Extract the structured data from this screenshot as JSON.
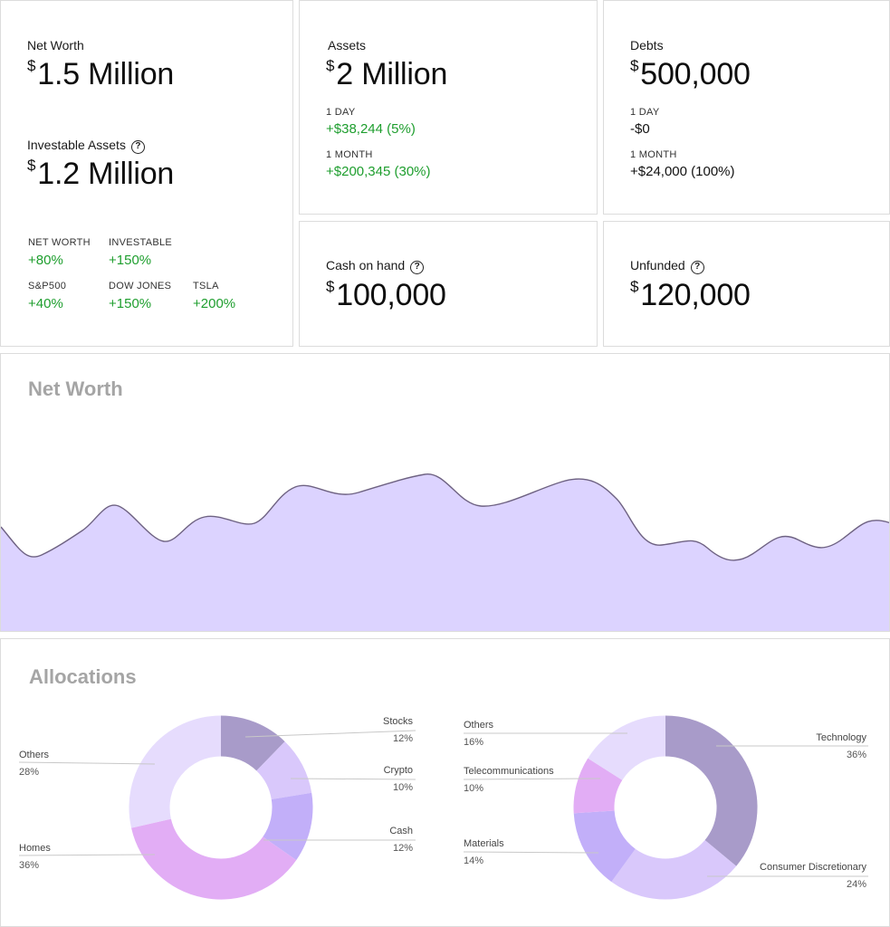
{
  "summary": {
    "net_worth": {
      "label": "Net Worth",
      "currency": "$",
      "value": "1.5 Million"
    },
    "investable": {
      "label": "Investable Assets",
      "help_icon": "question-circle-icon",
      "currency": "$",
      "value": "1.2 Million"
    },
    "benchmarks": [
      {
        "label": "NET WORTH",
        "value": "+80%"
      },
      {
        "label": "INVESTABLE",
        "value": "+150%"
      },
      {
        "label": "S&P500",
        "value": "+40%"
      },
      {
        "label": "DOW JONES",
        "value": "+150%"
      },
      {
        "label": "TSLA",
        "value": "+200%"
      }
    ]
  },
  "assets": {
    "label": "Assets",
    "currency": "$",
    "value": "2 Million",
    "day_label": "1 DAY",
    "day_change": "+$38,244 (5%)",
    "month_label": "1 MONTH",
    "month_change": "+$200,345 (30%)"
  },
  "debts": {
    "label": "Debts",
    "currency": "$",
    "value": "500,000",
    "day_label": "1 DAY",
    "day_change": "-$0",
    "month_label": "1 MONTH",
    "month_change": "+$24,000 (100%)"
  },
  "cash": {
    "label": "Cash on hand",
    "help_icon": "question-circle-icon",
    "currency": "$",
    "value": "100,000"
  },
  "unfunded": {
    "label": "Unfunded",
    "help_icon": "question-circle-icon",
    "currency": "$",
    "value": "120,000"
  },
  "net_worth_chart": {
    "title": "Net Worth",
    "fill_color": "#dcd3ff",
    "line_color": "#6e6282"
  },
  "allocations": {
    "title": "Allocations",
    "charts": [
      {
        "slices": [
          {
            "name": "Stocks",
            "percent": 12,
            "label": "12%",
            "color": "#a89bc9"
          },
          {
            "name": "Crypto",
            "percent": 10,
            "label": "10%",
            "color": "#d9c8fb"
          },
          {
            "name": "Cash",
            "percent": 12,
            "label": "12%",
            "color": "#c2aff9"
          },
          {
            "name": "Homes",
            "percent": 36,
            "label": "36%",
            "color": "#e2adf5"
          },
          {
            "name": "Others",
            "percent": 28,
            "label": "28%",
            "color": "#e6dcfd"
          }
        ]
      },
      {
        "slices": [
          {
            "name": "Technology",
            "percent": 36,
            "label": "36%",
            "color": "#a89bc9"
          },
          {
            "name": "Consumer Discretionary",
            "percent": 24,
            "label": "24%",
            "color": "#d9c8fb"
          },
          {
            "name": "Materials",
            "percent": 14,
            "label": "14%",
            "color": "#c2aff9"
          },
          {
            "name": "Telecommunications",
            "percent": 10,
            "label": "10%",
            "color": "#e2adf5"
          },
          {
            "name": "Others",
            "percent": 16,
            "label": "16%",
            "color": "#e6dcfd"
          }
        ]
      }
    ]
  }
}
